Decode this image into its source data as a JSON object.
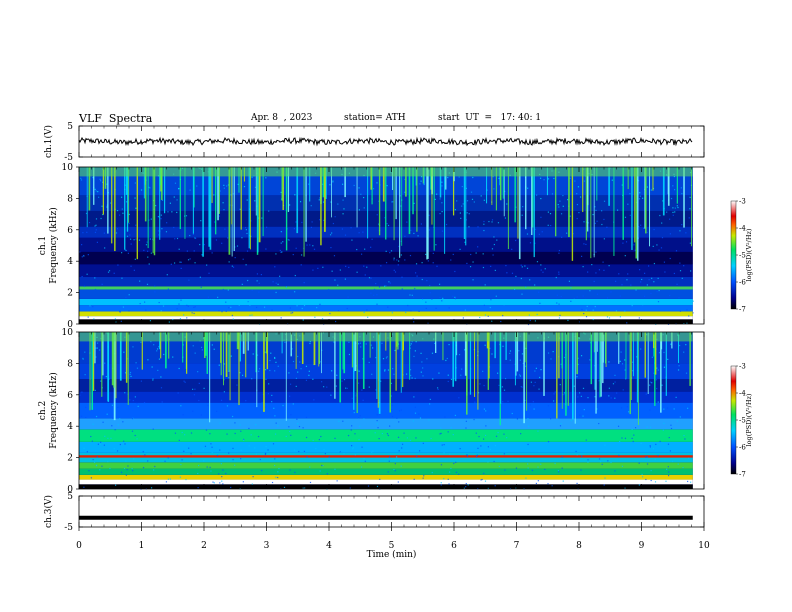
{
  "header": {
    "title": "VLF  Spectra",
    "date": "Apr. 8  , 2023",
    "station": "station= ATH",
    "start": "start  UT  =   17: 40: 1"
  },
  "chart_data": [
    {
      "type": "line",
      "ylabel": "ch.1(V)",
      "ylim": [
        -5,
        5
      ],
      "yticks": [
        "5",
        "-5"
      ],
      "series": [
        {
          "level_v": 0,
          "noise_v": 0.9
        }
      ],
      "color": "#000000"
    },
    {
      "type": "heatmap",
      "panel_label": "ch.1",
      "ylabel": "Frequency  (kHz)",
      "ylim": [
        0,
        10
      ],
      "yticks": [
        "0",
        "2",
        "4",
        "6",
        "8",
        "10"
      ],
      "colorbar": {
        "label": "log(PSD)(V²/Hz)",
        "range": [
          -7,
          -3
        ],
        "ticks": [
          "-3",
          "-4",
          "-5",
          "-6",
          "-7"
        ]
      }
    },
    {
      "type": "heatmap",
      "panel_label": "ch.2",
      "ylabel": "Frequency  (kHz)",
      "ylim": [
        0,
        10
      ],
      "yticks": [
        "0",
        "2",
        "4",
        "6",
        "8",
        "10"
      ],
      "colorbar": {
        "label": "log(PSD)(V²/Hz)",
        "range": [
          -7,
          -3
        ],
        "ticks": [
          "-3",
          "-4",
          "-5",
          "-6",
          "-7"
        ]
      }
    },
    {
      "type": "line",
      "ylabel": "ch.3(V)",
      "ylim": [
        -5,
        5
      ],
      "yticks": [
        "5",
        "-5"
      ],
      "series": [
        {
          "level_v": -2,
          "noise_v": 0
        }
      ],
      "color": "#000000"
    }
  ],
  "xaxis": {
    "label": "Time  (min)",
    "xlim": [
      0,
      10
    ],
    "ticks": [
      "0",
      "1",
      "2",
      "3",
      "4",
      "5",
      "6",
      "7",
      "8",
      "9",
      "10"
    ],
    "data_end": 9.82
  }
}
